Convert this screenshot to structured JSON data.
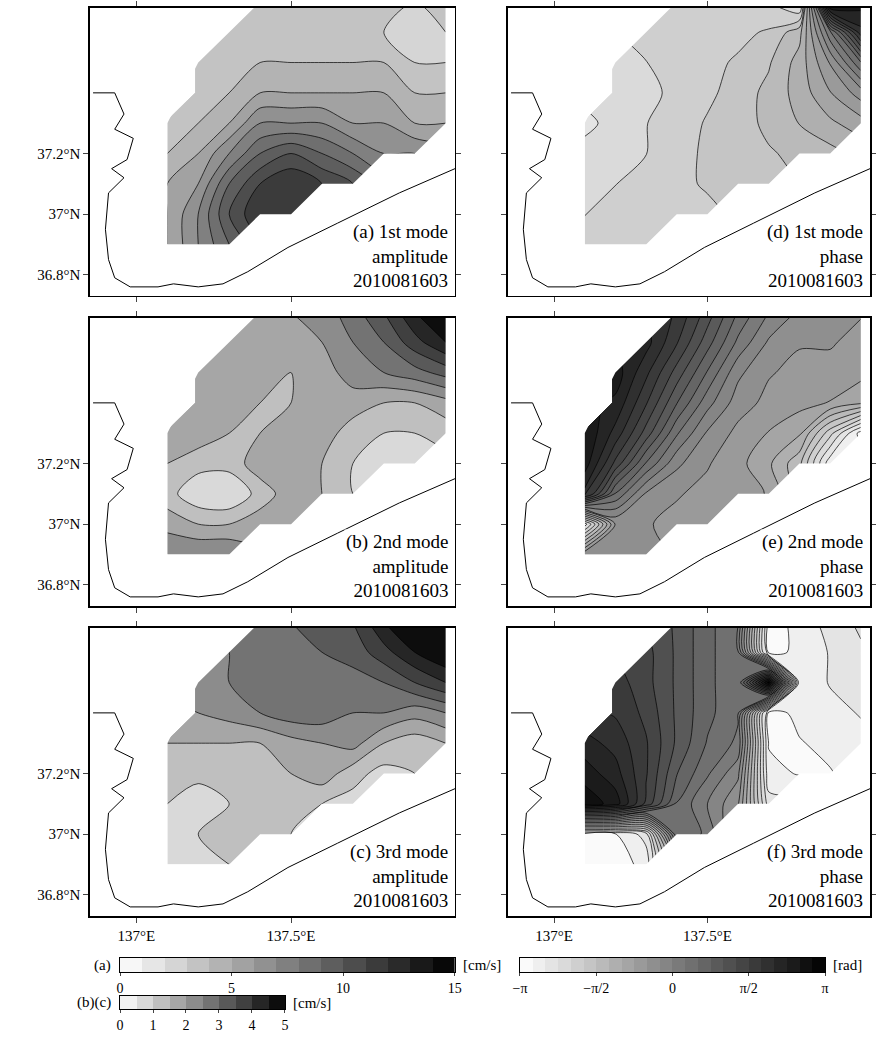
{
  "chart_data": [
    {
      "type": "contour",
      "label_lines": [
        "(a) 1st mode",
        "amplitude",
        "2010081603"
      ],
      "x": [
        137.1,
        137.2,
        137.3,
        137.4,
        137.5,
        137.6,
        137.7,
        137.8,
        137.9,
        138.0
      ],
      "y": [
        36.9,
        37.0,
        37.1,
        37.2,
        37.3,
        37.4,
        37.5,
        37.6,
        37.7
      ],
      "z": [
        [
          5,
          7,
          9,
          null,
          null,
          null,
          null,
          null,
          null,
          null
        ],
        [
          5,
          7,
          10,
          12,
          12,
          null,
          null,
          null,
          null,
          null
        ],
        [
          5,
          6,
          9,
          11,
          12,
          11,
          10,
          null,
          null,
          null
        ],
        [
          4,
          5,
          7,
          9,
          10,
          9,
          8,
          7,
          7,
          null
        ],
        [
          4,
          4,
          5,
          7,
          7,
          7,
          6,
          6,
          5,
          5
        ],
        [
          null,
          4,
          4,
          5,
          5,
          5,
          5,
          5,
          4,
          4
        ],
        [
          null,
          4,
          4,
          4,
          4,
          4,
          4,
          4,
          3,
          3
        ],
        [
          null,
          null,
          4,
          4,
          4,
          4,
          4,
          3,
          2,
          3
        ],
        [
          null,
          null,
          null,
          4,
          4,
          4,
          4,
          4,
          3,
          4
        ]
      ],
      "zlim": [
        0,
        15
      ],
      "step": 1,
      "xlim": [
        136.85,
        138.03
      ],
      "ylim": [
        36.73,
        37.68
      ],
      "xticks": [
        {
          "value": 137,
          "label": "137°E"
        },
        {
          "value": 137.5,
          "label": "137.5°E"
        }
      ],
      "yticks": [
        {
          "value": 36.8,
          "label": "36.8°N"
        },
        {
          "value": 37,
          "label": "37°N"
        },
        {
          "value": 37.2,
          "label": "37.2°N"
        }
      ],
      "tick_labels": "y"
    },
    {
      "type": "contour",
      "label_lines": [
        "(b) 2nd mode",
        "amplitude",
        "2010081603"
      ],
      "x": [
        137.1,
        137.2,
        137.3,
        137.4,
        137.5,
        137.6,
        137.7,
        137.8,
        137.9,
        138.0
      ],
      "y": [
        36.9,
        37.0,
        37.1,
        37.2,
        37.3,
        37.4,
        37.5,
        37.6,
        37.7
      ],
      "z": [
        [
          2.5,
          2.5,
          2.5,
          null,
          null,
          null,
          null,
          null,
          null,
          null
        ],
        [
          1.8,
          1.5,
          1.5,
          1.8,
          2.0,
          null,
          null,
          null,
          null,
          null
        ],
        [
          1.2,
          0.6,
          0.5,
          1.2,
          1.8,
          1.5,
          1.0,
          null,
          null,
          null
        ],
        [
          1.5,
          1.2,
          1.2,
          1.8,
          2.0,
          1.5,
          1.0,
          0.6,
          0.5,
          null
        ],
        [
          1.8,
          1.8,
          1.5,
          1.5,
          2.0,
          1.8,
          1.2,
          1.0,
          1.0,
          1.2
        ],
        [
          null,
          2.0,
          1.8,
          1.5,
          1.5,
          2.0,
          1.8,
          1.5,
          1.5,
          1.8
        ],
        [
          null,
          2.0,
          2.0,
          1.8,
          1.5,
          1.8,
          2.2,
          2.5,
          2.8,
          3.2
        ],
        [
          null,
          null,
          2.0,
          2.0,
          1.8,
          2.0,
          2.5,
          3.0,
          3.8,
          4.5
        ],
        [
          null,
          null,
          null,
          2.0,
          2.0,
          2.2,
          2.8,
          3.5,
          4.5,
          5.0
        ]
      ],
      "zlim": [
        0,
        5
      ],
      "step": 0.5,
      "xlim": [
        136.85,
        138.03
      ],
      "ylim": [
        36.73,
        37.68
      ],
      "xticks": [
        {
          "value": 137,
          "label": "137°E"
        },
        {
          "value": 137.5,
          "label": "137.5°E"
        }
      ],
      "yticks": [
        {
          "value": 36.8,
          "label": "36.8°N"
        },
        {
          "value": 37,
          "label": "37°N"
        },
        {
          "value": 37.2,
          "label": "37.2°N"
        }
      ],
      "tick_labels": "y"
    },
    {
      "type": "contour",
      "label_lines": [
        "(c) 3rd mode",
        "amplitude",
        "2010081603"
      ],
      "x": [
        137.1,
        137.2,
        137.3,
        137.4,
        137.5,
        137.6,
        137.7,
        137.8,
        137.9,
        138.0
      ],
      "y": [
        36.9,
        37.0,
        37.1,
        37.2,
        37.3,
        37.4,
        37.5,
        37.6,
        37.7
      ],
      "z": [
        [
          1.0,
          1.0,
          1.0,
          null,
          null,
          null,
          null,
          null,
          null,
          null
        ],
        [
          1.0,
          1.0,
          1.2,
          1.2,
          1.0,
          null,
          null,
          null,
          null,
          null
        ],
        [
          1.0,
          0.6,
          1.0,
          1.2,
          1.5,
          1.0,
          0.8,
          null,
          null,
          null
        ],
        [
          1.2,
          1.2,
          1.2,
          1.0,
          1.5,
          1.8,
          1.2,
          0.8,
          1.0,
          null
        ],
        [
          1.5,
          1.5,
          1.5,
          1.5,
          1.8,
          2.0,
          2.2,
          1.5,
          1.2,
          1.5
        ],
        [
          null,
          2.0,
          2.2,
          2.5,
          2.8,
          2.8,
          2.5,
          2.5,
          2.2,
          2.5
        ],
        [
          null,
          2.2,
          2.5,
          3.0,
          3.0,
          3.0,
          2.8,
          3.0,
          3.5,
          4.0
        ],
        [
          null,
          null,
          2.5,
          3.0,
          3.0,
          3.0,
          3.2,
          3.8,
          4.5,
          5.0
        ],
        [
          null,
          null,
          null,
          2.8,
          3.0,
          3.2,
          3.5,
          4.5,
          5.0,
          5.0
        ]
      ],
      "zlim": [
        0,
        5
      ],
      "step": 0.5,
      "xlim": [
        136.85,
        138.03
      ],
      "ylim": [
        36.73,
        37.68
      ],
      "xticks": [
        {
          "value": 137,
          "label": "137°E"
        },
        {
          "value": 137.5,
          "label": "137.5°E"
        }
      ],
      "yticks": [
        {
          "value": 36.8,
          "label": "36.8°N"
        },
        {
          "value": 37,
          "label": "37°N"
        },
        {
          "value": 37.2,
          "label": "37.2°N"
        }
      ],
      "tick_labels": true
    },
    {
      "type": "contour",
      "label_lines": [
        "(d) 1st mode",
        "phase",
        "2010081603"
      ],
      "x": [
        137.1,
        137.2,
        137.3,
        137.4,
        137.5,
        137.6,
        137.7,
        137.8,
        137.9,
        138.0
      ],
      "y": [
        36.9,
        37.0,
        37.1,
        37.2,
        37.3,
        37.4,
        37.5,
        37.6,
        37.7
      ],
      "z": [
        [
          -2.0,
          -2.0,
          -2.0,
          null,
          null,
          null,
          null,
          null,
          null,
          null
        ],
        [
          -2.1,
          -2.0,
          -1.9,
          -1.9,
          -1.9,
          null,
          null,
          null,
          null,
          null
        ],
        [
          -2.2,
          -2.1,
          -2.0,
          -1.9,
          -1.8,
          -1.7,
          -1.7,
          null,
          null,
          null
        ],
        [
          -2.3,
          -2.2,
          -2.1,
          -1.9,
          -1.8,
          -1.7,
          -1.6,
          -1.5,
          -1.4,
          null
        ],
        [
          -2.4,
          -2.3,
          -2.1,
          -2.0,
          -1.8,
          -1.7,
          -1.5,
          -1.3,
          -1.1,
          -0.9
        ],
        [
          null,
          -2.3,
          -2.2,
          -2.0,
          -1.9,
          -1.7,
          -1.5,
          -1.2,
          -0.8,
          -0.4
        ],
        [
          null,
          -2.2,
          -2.1,
          -2.0,
          -1.9,
          -1.8,
          -1.6,
          -1.2,
          -0.5,
          0.5
        ],
        [
          null,
          null,
          -2.0,
          -2.0,
          -1.9,
          -1.9,
          -1.8,
          -1.4,
          0.2,
          2.0
        ],
        [
          null,
          null,
          null,
          -2.0,
          -2.0,
          -2.0,
          -2.1,
          -2.5,
          3.0,
          2.5
        ]
      ],
      "zlim": [
        -3.14159,
        3.14159
      ],
      "step": 0.261799,
      "xlim": [
        136.85,
        138.03
      ],
      "ylim": [
        36.73,
        37.68
      ],
      "xticks": [
        {
          "value": 137,
          "label": "137°E"
        },
        {
          "value": 137.5,
          "label": "137.5°E"
        }
      ],
      "yticks": [
        {
          "value": 36.8,
          "label": "36.8°N"
        },
        {
          "value": 37,
          "label": "37°N"
        },
        {
          "value": 37.2,
          "label": "37.2°N"
        }
      ],
      "tick_labels": false
    },
    {
      "type": "contour",
      "label_lines": [
        "(e) 2nd mode",
        "phase",
        "2010081603"
      ],
      "x": [
        137.1,
        137.2,
        137.3,
        137.4,
        137.5,
        137.6,
        137.7,
        137.8,
        137.9,
        138.0
      ],
      "y": [
        36.9,
        37.0,
        37.1,
        37.2,
        37.3,
        37.4,
        37.5,
        37.6,
        37.7
      ],
      "z": [
        [
          -0.3,
          -0.3,
          -0.4,
          null,
          null,
          null,
          null,
          null,
          null,
          null
        ],
        [
          -2.5,
          -0.5,
          -0.5,
          -0.6,
          -0.6,
          null,
          null,
          null,
          null,
          null
        ],
        [
          2.0,
          0.5,
          -0.3,
          -0.5,
          -0.6,
          -0.7,
          -0.8,
          null,
          null,
          null
        ],
        [
          2.5,
          1.5,
          0.5,
          -0.2,
          -0.5,
          -0.7,
          -1.0,
          -1.5,
          -2.8,
          null
        ],
        [
          2.6,
          2.0,
          1.2,
          0.3,
          -0.3,
          -0.6,
          -0.8,
          -1.0,
          -2.0,
          -3.0
        ],
        [
          null,
          2.3,
          1.6,
          0.8,
          0.1,
          -0.4,
          -0.6,
          -0.7,
          -0.8,
          -1.0
        ],
        [
          null,
          2.5,
          1.9,
          1.2,
          0.5,
          -0.2,
          -0.5,
          -0.6,
          -0.6,
          -0.7
        ],
        [
          null,
          null,
          2.2,
          1.6,
          0.9,
          0.2,
          -0.3,
          -0.5,
          -0.5,
          -0.6
        ],
        [
          null,
          null,
          null,
          1.8,
          1.2,
          0.5,
          0.0,
          -0.3,
          -0.4,
          -0.5
        ]
      ],
      "zlim": [
        -3.14159,
        3.14159
      ],
      "step": 0.261799,
      "xlim": [
        136.85,
        138.03
      ],
      "ylim": [
        36.73,
        37.68
      ],
      "xticks": [
        {
          "value": 137,
          "label": "137°E"
        },
        {
          "value": 137.5,
          "label": "137.5°E"
        }
      ],
      "yticks": [
        {
          "value": 36.8,
          "label": "36.8°N"
        },
        {
          "value": 37,
          "label": "37°N"
        },
        {
          "value": 37.2,
          "label": "37.2°N"
        }
      ],
      "tick_labels": false
    },
    {
      "type": "contour",
      "label_lines": [
        "(f) 3rd mode",
        "phase",
        "2010081603"
      ],
      "x": [
        137.1,
        137.2,
        137.3,
        137.4,
        137.5,
        137.6,
        137.7,
        137.8,
        137.9,
        138.0
      ],
      "y": [
        36.9,
        37.0,
        37.1,
        37.2,
        37.3,
        37.4,
        37.5,
        37.6,
        37.7
      ],
      "z": [
        [
          -3.0,
          -3.0,
          -2.8,
          null,
          null,
          null,
          null,
          null,
          null,
          null
        ],
        [
          -3.0,
          -2.9,
          -2.5,
          0.5,
          0.2,
          null,
          null,
          null,
          null,
          null
        ],
        [
          2.8,
          2.5,
          1.5,
          0.5,
          0.0,
          -0.5,
          -2.5,
          null,
          null,
          null
        ],
        [
          2.5,
          2.2,
          1.6,
          0.8,
          0.3,
          -0.2,
          -2.8,
          -2.9,
          -2.9,
          null
        ],
        [
          2.2,
          2.0,
          1.6,
          1.0,
          0.5,
          0.2,
          -2.9,
          -2.9,
          -2.8,
          -2.7
        ],
        [
          null,
          1.8,
          1.5,
          1.0,
          0.6,
          0.3,
          -3.0,
          -2.8,
          -2.7,
          -2.6
        ],
        [
          null,
          1.7,
          1.4,
          1.0,
          0.6,
          0.3,
          3.0,
          -2.8,
          -2.6,
          -2.5
        ],
        [
          null,
          null,
          1.4,
          1.0,
          0.6,
          0.3,
          -3.0,
          -2.8,
          -2.6,
          -2.4
        ],
        [
          null,
          null,
          null,
          1.0,
          0.6,
          0.3,
          -3.0,
          -2.8,
          -2.5,
          -2.3
        ]
      ],
      "zlim": [
        -3.14159,
        3.14159
      ],
      "step": 0.261799,
      "xlim": [
        136.85,
        138.03
      ],
      "ylim": [
        36.73,
        37.68
      ],
      "xticks": [
        {
          "value": 137,
          "label": "137°E"
        },
        {
          "value": 137.5,
          "label": "137.5°E"
        }
      ],
      "yticks": [
        {
          "value": 36.8,
          "label": "36.8°N"
        },
        {
          "value": 37,
          "label": "37°N"
        },
        {
          "value": 37.2,
          "label": "37.2°N"
        }
      ],
      "tick_labels": "x"
    },
    {
      "type": "colorbar",
      "label": "(a)",
      "unit": "[cm/s]",
      "zlim": [
        0,
        15
      ],
      "zticks": [
        0,
        5,
        10,
        15
      ],
      "step": 1
    },
    {
      "type": "colorbar",
      "label": "(b)(c)",
      "unit": "[cm/s]",
      "zlim": [
        0,
        5
      ],
      "zticks": [
        0,
        1,
        2,
        3,
        4,
        5
      ],
      "step": 0.5
    },
    {
      "type": "colorbar",
      "unit": "[rad]",
      "zlim": [
        -3.14159,
        3.14159
      ],
      "zticks": [
        {
          "value": -3.14159,
          "label": "−π"
        },
        {
          "value": -1.5708,
          "label": "−π/2"
        },
        0,
        {
          "value": 1.5708,
          "label": "π/2"
        },
        {
          "value": 3.14159,
          "label": "π"
        }
      ],
      "step": 0.261799
    }
  ],
  "coastline": {
    "lon": [
      136.86,
      136.93,
      136.96,
      136.93,
      136.99,
      136.97,
      136.92,
      136.96,
      136.91,
      136.9,
      136.91,
      136.93,
      136.98,
      137.07,
      137.12,
      137.2,
      137.28,
      137.36,
      137.49,
      137.65,
      137.85,
      138.03
    ],
    "lat": [
      37.4,
      37.4,
      37.33,
      37.28,
      37.25,
      37.18,
      37.15,
      37.12,
      37.07,
      36.95,
      36.85,
      36.79,
      36.76,
      36.76,
      36.77,
      36.76,
      36.77,
      36.81,
      36.89,
      36.97,
      37.07,
      37.15
    ]
  }
}
